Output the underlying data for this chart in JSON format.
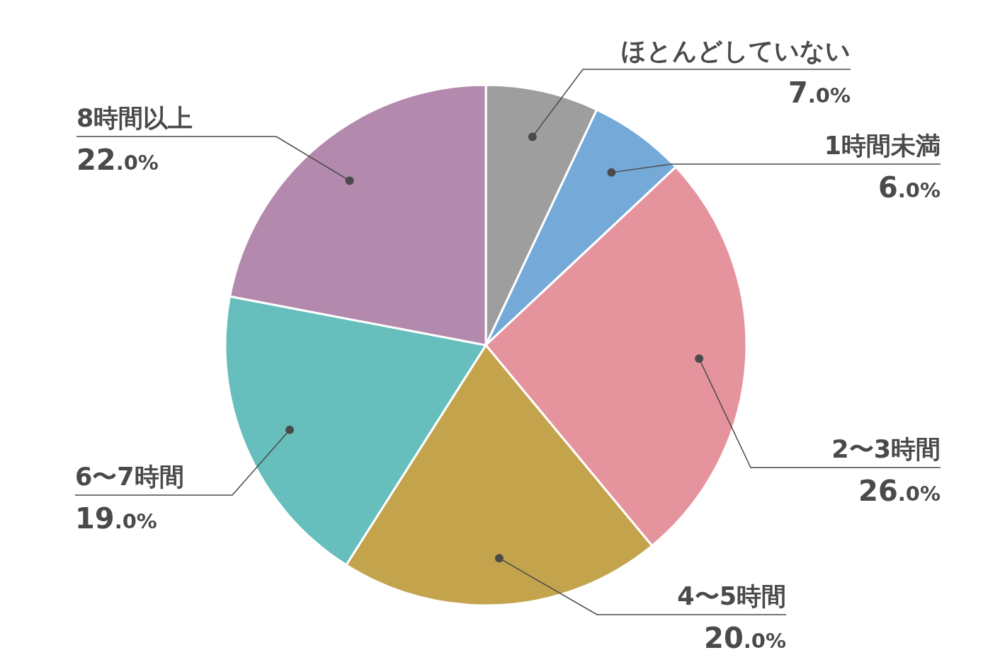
{
  "chart_data": {
    "type": "pie",
    "categories": [
      "ほとんどしていない",
      "1時間未満",
      "2〜3時間",
      "4〜5時間",
      "6〜7時間",
      "8時間以上"
    ],
    "values": [
      7,
      6,
      26,
      20,
      19,
      22
    ],
    "colors": [
      "#9e9e9e",
      "#74a9d8",
      "#e5949e",
      "#c4a34d",
      "#66bfbc",
      "#b38aad"
    ],
    "value_labels": [
      "7.0%",
      "6.0%",
      "26.0%",
      "20.0%",
      "19.0%",
      "22.0%"
    ]
  }
}
